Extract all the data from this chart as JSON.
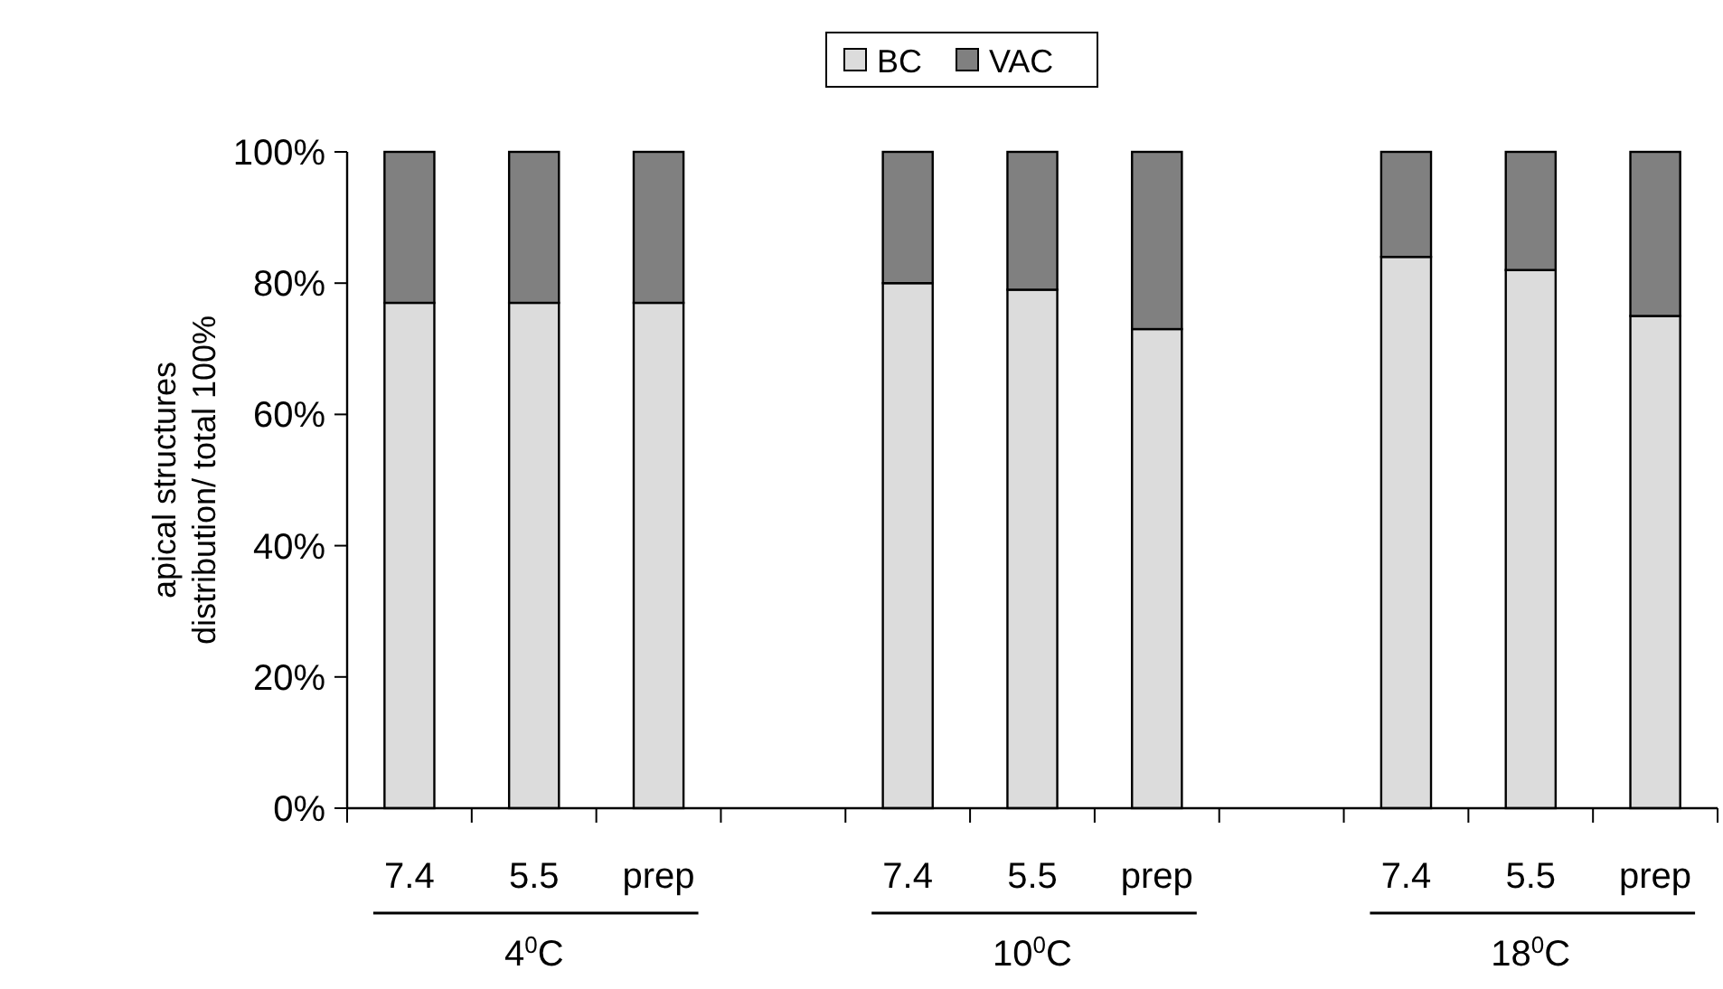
{
  "chart_data": {
    "type": "bar",
    "stacked": true,
    "ylabel": "apical structures\ndistribution/ total 100%",
    "categories": [
      "7.4",
      "5.5",
      "prep",
      null,
      "7.4",
      "5.5",
      "prep",
      null,
      "7.4",
      "5.5",
      "prep"
    ],
    "series": [
      {
        "name": "BC",
        "color": "#dcdcdc",
        "values": [
          77,
          77,
          77,
          null,
          80,
          79,
          73,
          null,
          84,
          82,
          75
        ]
      },
      {
        "name": "VAC",
        "color": "#808080",
        "values": [
          23,
          23,
          23,
          null,
          20,
          21,
          27,
          null,
          16,
          18,
          25
        ]
      }
    ],
    "ylim": [
      0,
      100
    ],
    "yticks": [
      {
        "value": 0,
        "label": "0%"
      },
      {
        "value": 20,
        "label": "20%"
      },
      {
        "value": 40,
        "label": "40%"
      },
      {
        "value": 60,
        "label": "60%"
      },
      {
        "value": 80,
        "label": "80%"
      },
      {
        "value": 100,
        "label": "100%"
      }
    ],
    "annotations": [
      "4$^{0}$C",
      "10$^{0}$C",
      "18$^{0}$C"
    ],
    "legend": "top",
    "grid": false
  }
}
